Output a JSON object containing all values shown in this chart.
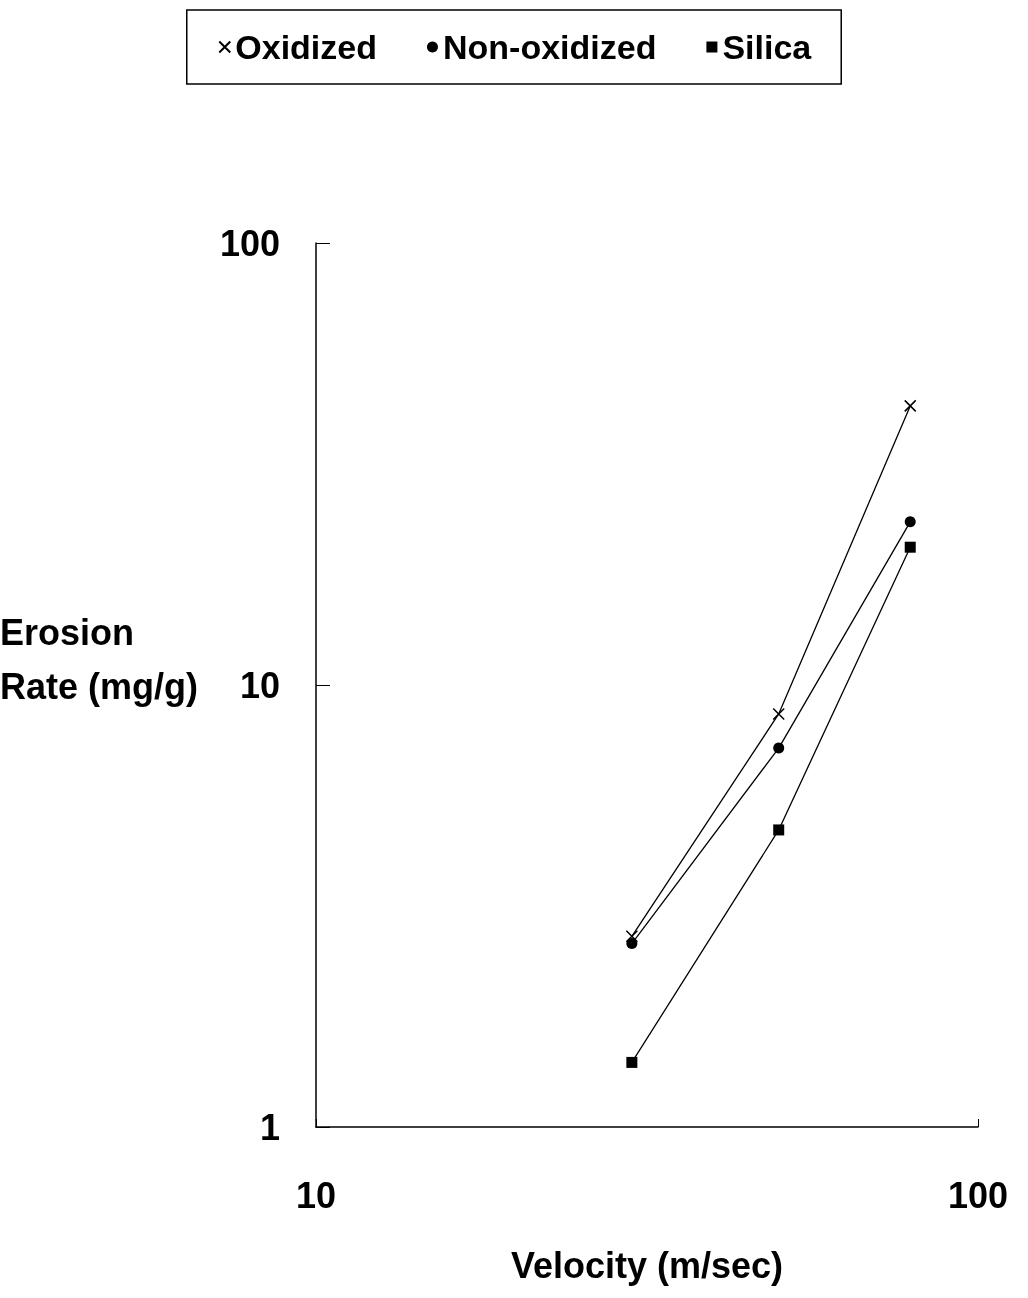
{
  "chart_data": {
    "type": "line",
    "xlabel": "Velocity (m/sec)",
    "ylabel": "Erosion Rate (mg/g)",
    "log": "xy",
    "x": [
      30,
      50,
      79
    ],
    "xlim": [
      10,
      100
    ],
    "xticks": [
      10,
      100
    ],
    "ylim": [
      1,
      100
    ],
    "yticks": [
      1,
      10,
      100
    ],
    "grid": false,
    "legend": "top",
    "line_style": "solid",
    "series": [
      {
        "name": "Oxidized",
        "color": "#000000",
        "marker": "cross",
        "values": [
          2.7,
          8.6,
          42.8
        ]
      },
      {
        "name": "Non-oxidized",
        "color": "#000000",
        "marker": "circle",
        "values": [
          2.6,
          7.2,
          23.4
        ]
      },
      {
        "name": "Silica",
        "color": "#000000",
        "marker": "square",
        "values": [
          1.4,
          4.7,
          20.5
        ]
      }
    ]
  }
}
